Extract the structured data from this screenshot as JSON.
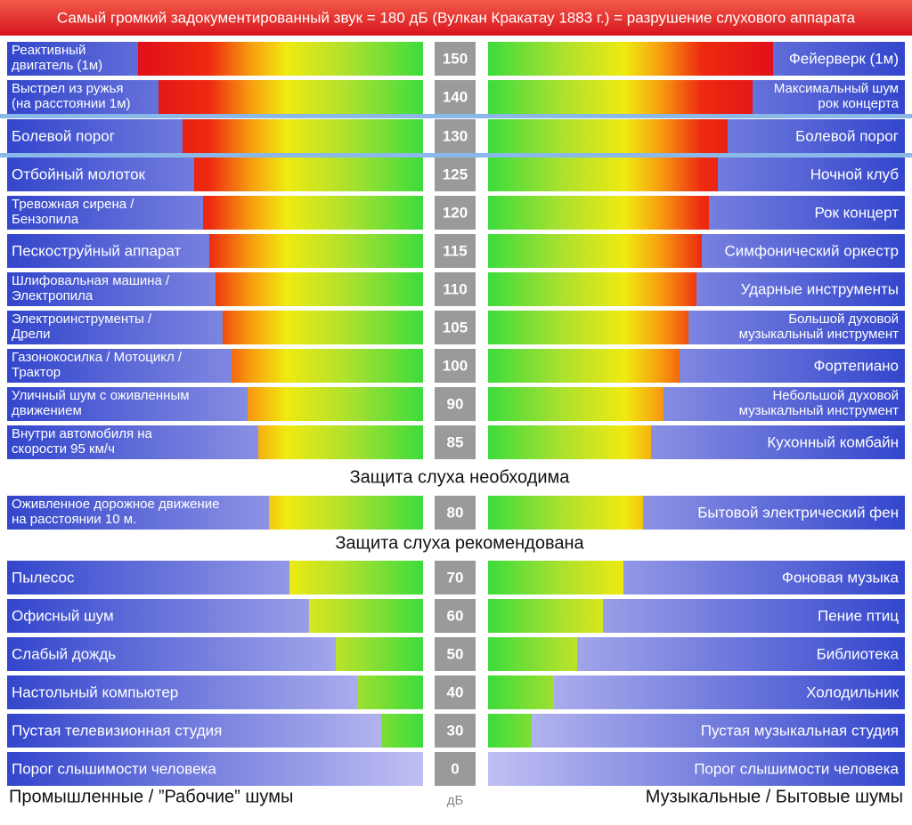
{
  "header": {
    "title": "Самый громкий задокументированный звук = 180 дБ (Вулкан Кракатау 1883 г.) = разрушение слухового аппарата"
  },
  "rows": [
    {
      "left": [
        "Реактивный",
        "двигатель (1м)"
      ],
      "db": 150,
      "right": [
        "Фейерверк (1м)"
      ]
    },
    {
      "left": [
        "Выстрел из ружья",
        "(на расстоянии 1м)"
      ],
      "db": 140,
      "right": [
        "Максимальный шум",
        "рок концерта"
      ]
    },
    {
      "left": [
        "Болевой порог"
      ],
      "db": 130,
      "right": [
        "Болевой порог"
      ]
    },
    {
      "left": [
        "Отбойный молоток"
      ],
      "db": 125,
      "right": [
        "Ночной клуб"
      ]
    },
    {
      "left": [
        "Тревожная сирена /",
        "Бензопила"
      ],
      "db": 120,
      "right": [
        "Рок концерт"
      ]
    },
    {
      "left": [
        "Пескоструйный аппарат"
      ],
      "db": 115,
      "right": [
        "Симфонический оркестр"
      ]
    },
    {
      "left": [
        "Шлифовальная машина /",
        "Электропила"
      ],
      "db": 110,
      "right": [
        "Ударные инструменты"
      ]
    },
    {
      "left": [
        "Электроинструменты /",
        "Дрели"
      ],
      "db": 105,
      "right": [
        "Большой духовой",
        "музыкальный инструмент"
      ]
    },
    {
      "left": [
        "Газонокосилка / Мотоцикл /",
        "Трактор"
      ],
      "db": 100,
      "right": [
        "Фортепиано"
      ]
    },
    {
      "left": [
        "Уличный шум с оживленным",
        "движением"
      ],
      "db": 90,
      "right": [
        "Небольшой духовой",
        "музыкальный инструмент"
      ]
    },
    {
      "left": [
        "Внутри автомобиля на",
        "скорости 95 км/ч"
      ],
      "db": 85,
      "right": [
        "Кухонный комбайн"
      ]
    },
    {
      "left": [
        "Оживленное дорожное движение",
        "на расстоянии 10 м."
      ],
      "db": 80,
      "right": [
        "Бытовой электрический фен"
      ]
    },
    {
      "left": [
        "Пылесос"
      ],
      "db": 70,
      "right": [
        "Фоновая музыка"
      ]
    },
    {
      "left": [
        "Офисный шум"
      ],
      "db": 60,
      "right": [
        "Пение птиц"
      ]
    },
    {
      "left": [
        "Слабый дождь"
      ],
      "db": 50,
      "right": [
        "Библиотека"
      ]
    },
    {
      "left": [
        "Настольный компьютер"
      ],
      "db": 40,
      "right": [
        "Холодильник"
      ]
    },
    {
      "left": [
        "Пустая телевизионная студия"
      ],
      "db": 30,
      "right": [
        "Пустая музыкальная студия"
      ]
    },
    {
      "left": [
        "Порог слышимости человека"
      ],
      "db": 0,
      "right": [
        "Порог слышимости человека"
      ]
    }
  ],
  "notes": {
    "required": "Защита слуха необходима",
    "recommended": "Защита слуха рекомендована"
  },
  "footer": {
    "left": "Промышленные / ”Рабочие” шумы",
    "unit": "дБ",
    "right": "Музыкальные / Бытовые шумы"
  }
}
